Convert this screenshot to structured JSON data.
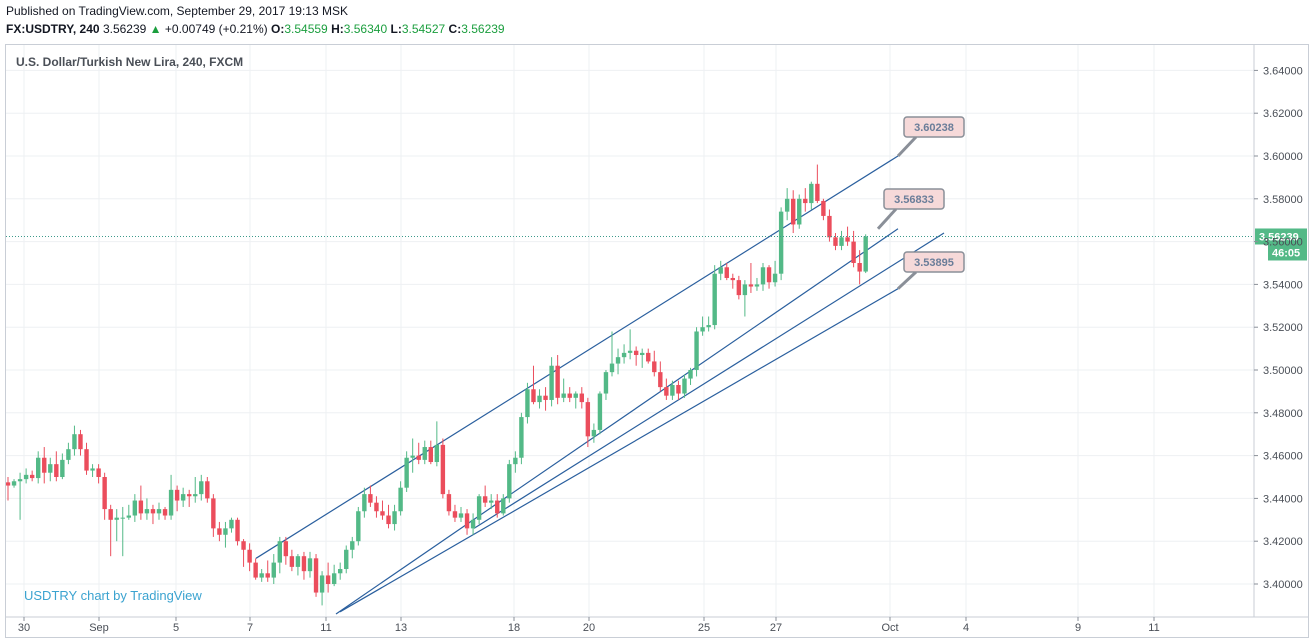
{
  "header": {
    "published": "Published on TradingView.com, September 29, 2017 19:13 MSK",
    "symbol": "FX:USDTRY, 240",
    "last": "3.56239",
    "change_arrow": "▲",
    "change": "+0.00749 (+0.21%)",
    "o_label": "O:",
    "o": "3.54559",
    "h_label": "H:",
    "h": "3.56340",
    "l_label": "L:",
    "l": "3.54527",
    "c_label": "C:",
    "c": "3.56239"
  },
  "chart_data": {
    "type": "candlestick",
    "title": "U.S. Dollar/Turkish New Lira, 240, FXCM",
    "watermark": "USDTRY chart by TradingView",
    "x_tick_labels": [
      "30",
      "Sep",
      "5",
      "7",
      "11",
      "13",
      "18",
      "20",
      "25",
      "27",
      "Oct",
      "4",
      "9",
      "11"
    ],
    "y_tick_labels": [
      "3.40000",
      "3.42000",
      "3.44000",
      "3.46000",
      "3.48000",
      "3.50000",
      "3.52000",
      "3.54000",
      "3.56000",
      "3.58000",
      "3.60000",
      "3.62000",
      "3.64000"
    ],
    "ylim": [
      3.386,
      3.648
    ],
    "grid": true,
    "last_price": "3.56239",
    "countdown": "46:05",
    "annotations": [
      "3.60238",
      "3.56833",
      "3.53895"
    ],
    "channel_lines": 4,
    "colors": {
      "up": "#53b987",
      "down": "#eb4d5c",
      "line": "#2a5f9e",
      "price_line": "#3d9a8b",
      "callout_bg": "#f6d9d9"
    },
    "candles": [
      [
        3.4475,
        3.45,
        3.439,
        3.446
      ],
      [
        3.446,
        3.449,
        3.445,
        3.448
      ],
      [
        3.448,
        3.452,
        3.43,
        3.449
      ],
      [
        3.449,
        3.454,
        3.447,
        3.451
      ],
      [
        3.451,
        3.453,
        3.448,
        3.4495
      ],
      [
        3.4495,
        3.462,
        3.447,
        3.459
      ],
      [
        3.459,
        3.464,
        3.447,
        3.452
      ],
      [
        3.452,
        3.459,
        3.448,
        3.456
      ],
      [
        3.456,
        3.462,
        3.448,
        3.45
      ],
      [
        3.45,
        3.461,
        3.449,
        3.458
      ],
      [
        3.458,
        3.466,
        3.456,
        3.463
      ],
      [
        3.463,
        3.474,
        3.46,
        3.47
      ],
      [
        3.47,
        3.472,
        3.46,
        3.463
      ],
      [
        3.463,
        3.466,
        3.451,
        3.453
      ],
      [
        3.453,
        3.456,
        3.45,
        3.454
      ],
      [
        3.454,
        3.456,
        3.447,
        3.45
      ],
      [
        3.45,
        3.452,
        3.43,
        3.435
      ],
      [
        3.435,
        3.437,
        3.413,
        3.43
      ],
      [
        3.43,
        3.435,
        3.42,
        3.431
      ],
      [
        3.431,
        3.436,
        3.413,
        3.431
      ],
      [
        3.431,
        3.437,
        3.43,
        3.432
      ],
      [
        3.432,
        3.442,
        3.429,
        3.439
      ],
      [
        3.439,
        3.446,
        3.43,
        3.433
      ],
      [
        3.433,
        3.44,
        3.43,
        3.435
      ],
      [
        3.435,
        3.437,
        3.428,
        3.433
      ],
      [
        3.433,
        3.438,
        3.43,
        3.435
      ],
      [
        3.435,
        3.436,
        3.43,
        3.432
      ],
      [
        3.432,
        3.451,
        3.43,
        3.444
      ],
      [
        3.444,
        3.446,
        3.434,
        3.439
      ],
      [
        3.439,
        3.445,
        3.436,
        3.442
      ],
      [
        3.442,
        3.444,
        3.436,
        3.441
      ],
      [
        3.441,
        3.45,
        3.438,
        3.442
      ],
      [
        3.442,
        3.451,
        3.439,
        3.448
      ],
      [
        3.448,
        3.45,
        3.438,
        3.44
      ],
      [
        3.44,
        3.442,
        3.422,
        3.426
      ],
      [
        3.426,
        3.429,
        3.42,
        3.423
      ],
      [
        3.423,
        3.429,
        3.417,
        3.426
      ],
      [
        3.426,
        3.431,
        3.424,
        3.43
      ],
      [
        3.43,
        3.431,
        3.418,
        3.42
      ],
      [
        3.42,
        3.421,
        3.408,
        3.416
      ],
      [
        3.416,
        3.419,
        3.406,
        3.41
      ],
      [
        3.41,
        3.412,
        3.402,
        3.403
      ],
      [
        3.403,
        3.407,
        3.401,
        3.405
      ],
      [
        3.405,
        3.411,
        3.401,
        3.403
      ],
      [
        3.403,
        3.414,
        3.4,
        3.41
      ],
      [
        3.41,
        3.422,
        3.405,
        3.42
      ],
      [
        3.42,
        3.422,
        3.409,
        3.413
      ],
      [
        3.413,
        3.416,
        3.406,
        3.408
      ],
      [
        3.408,
        3.414,
        3.404,
        3.413
      ],
      [
        3.413,
        3.415,
        3.402,
        3.406
      ],
      [
        3.406,
        3.415,
        3.403,
        3.412
      ],
      [
        3.412,
        3.414,
        3.394,
        3.396
      ],
      [
        3.396,
        3.406,
        3.39,
        3.404
      ],
      [
        3.404,
        3.41,
        3.396,
        3.4
      ],
      [
        3.4,
        3.409,
        3.399,
        3.405
      ],
      [
        3.405,
        3.41,
        3.402,
        3.407
      ],
      [
        3.407,
        3.418,
        3.405,
        3.416
      ],
      [
        3.416,
        3.422,
        3.412,
        3.42
      ],
      [
        3.42,
        3.436,
        3.418,
        3.434
      ],
      [
        3.434,
        3.445,
        3.431,
        3.442
      ],
      [
        3.442,
        3.446,
        3.436,
        3.438
      ],
      [
        3.438,
        3.441,
        3.431,
        3.434
      ],
      [
        3.434,
        3.439,
        3.43,
        3.432
      ],
      [
        3.432,
        3.437,
        3.426,
        3.428
      ],
      [
        3.428,
        3.437,
        3.425,
        3.434
      ],
      [
        3.434,
        3.448,
        3.432,
        3.445
      ],
      [
        3.445,
        3.462,
        3.443,
        3.459
      ],
      [
        3.459,
        3.468,
        3.452,
        3.46
      ],
      [
        3.46,
        3.466,
        3.456,
        3.458
      ],
      [
        3.458,
        3.467,
        3.456,
        3.464
      ],
      [
        3.464,
        3.467,
        3.456,
        3.457
      ],
      [
        3.457,
        3.476,
        3.455,
        3.465
      ],
      [
        3.465,
        3.468,
        3.44,
        3.442
      ],
      [
        3.442,
        3.444,
        3.432,
        3.434
      ],
      [
        3.434,
        3.437,
        3.429,
        3.431
      ],
      [
        3.431,
        3.436,
        3.429,
        3.433
      ],
      [
        3.433,
        3.435,
        3.423,
        3.426
      ],
      [
        3.426,
        3.433,
        3.423,
        3.43
      ],
      [
        3.43,
        3.442,
        3.428,
        3.441
      ],
      [
        3.441,
        3.446,
        3.436,
        3.438
      ],
      [
        3.438,
        3.442,
        3.435,
        3.439
      ],
      [
        3.439,
        3.442,
        3.431,
        3.433
      ],
      [
        3.433,
        3.442,
        3.432,
        3.44
      ],
      [
        3.44,
        3.458,
        3.438,
        3.456
      ],
      [
        3.456,
        3.462,
        3.452,
        3.459
      ],
      [
        3.459,
        3.48,
        3.456,
        3.478
      ],
      [
        3.478,
        3.494,
        3.475,
        3.491
      ],
      [
        3.491,
        3.502,
        3.484,
        3.485
      ],
      [
        3.485,
        3.491,
        3.482,
        3.488
      ],
      [
        3.488,
        3.492,
        3.481,
        3.486
      ],
      [
        3.486,
        3.506,
        3.483,
        3.502
      ],
      [
        3.502,
        3.507,
        3.484,
        3.487
      ],
      [
        3.487,
        3.496,
        3.485,
        3.489
      ],
      [
        3.489,
        3.492,
        3.485,
        3.487
      ],
      [
        3.487,
        3.49,
        3.482,
        3.489
      ],
      [
        3.489,
        3.492,
        3.482,
        3.485
      ],
      [
        3.485,
        3.487,
        3.464,
        3.469
      ],
      [
        3.469,
        3.475,
        3.466,
        3.472
      ],
      [
        3.472,
        3.49,
        3.47,
        3.489
      ],
      [
        3.489,
        3.5,
        3.486,
        3.499
      ],
      [
        3.499,
        3.518,
        3.497,
        3.503
      ],
      [
        3.503,
        3.51,
        3.498,
        3.506
      ],
      [
        3.506,
        3.512,
        3.503,
        3.508
      ],
      [
        3.508,
        3.519,
        3.505,
        3.509
      ],
      [
        3.509,
        3.511,
        3.502,
        3.507
      ],
      [
        3.507,
        3.51,
        3.501,
        3.508
      ],
      [
        3.508,
        3.51,
        3.503,
        3.504
      ],
      [
        3.504,
        3.509,
        3.497,
        3.499
      ],
      [
        3.499,
        3.504,
        3.49,
        3.492
      ],
      [
        3.492,
        3.496,
        3.486,
        3.488
      ],
      [
        3.488,
        3.495,
        3.486,
        3.493
      ],
      [
        3.493,
        3.495,
        3.486,
        3.489
      ],
      [
        3.489,
        3.498,
        3.487,
        3.496
      ],
      [
        3.496,
        3.501,
        3.493,
        3.5
      ],
      [
        3.5,
        3.52,
        3.497,
        3.518
      ],
      [
        3.518,
        3.525,
        3.516,
        3.52
      ],
      [
        3.52,
        3.525,
        3.518,
        3.521
      ],
      [
        3.521,
        3.549,
        3.519,
        3.545
      ],
      [
        3.545,
        3.551,
        3.542,
        3.548
      ],
      [
        3.548,
        3.55,
        3.542,
        3.543
      ],
      [
        3.543,
        3.545,
        3.538,
        3.542
      ],
      [
        3.542,
        3.544,
        3.533,
        3.535
      ],
      [
        3.535,
        3.542,
        3.525,
        3.54
      ],
      [
        3.54,
        3.55,
        3.536,
        3.539
      ],
      [
        3.539,
        3.543,
        3.537,
        3.54
      ],
      [
        3.54,
        3.55,
        3.537,
        3.548
      ],
      [
        3.548,
        3.549,
        3.538,
        3.541
      ],
      [
        3.541,
        3.551,
        3.539,
        3.545
      ],
      [
        3.545,
        3.576,
        3.542,
        3.574
      ],
      [
        3.574,
        3.585,
        3.57,
        3.58
      ],
      [
        3.58,
        3.584,
        3.564,
        3.568
      ],
      [
        3.568,
        3.582,
        3.566,
        3.58
      ],
      [
        3.58,
        3.585,
        3.574,
        3.578
      ],
      [
        3.578,
        3.588,
        3.575,
        3.587
      ],
      [
        3.587,
        3.596,
        3.578,
        3.579
      ],
      [
        3.579,
        3.58,
        3.57,
        3.572
      ],
      [
        3.572,
        3.575,
        3.56,
        3.562
      ],
      [
        3.562,
        3.564,
        3.556,
        3.558
      ],
      [
        3.558,
        3.565,
        3.556,
        3.562
      ],
      [
        3.562,
        3.567,
        3.558,
        3.56
      ],
      [
        3.56,
        3.565,
        3.548,
        3.55
      ],
      [
        3.55,
        3.556,
        3.54,
        3.546
      ],
      [
        3.546,
        3.5634,
        3.5453,
        3.5624
      ]
    ]
  }
}
